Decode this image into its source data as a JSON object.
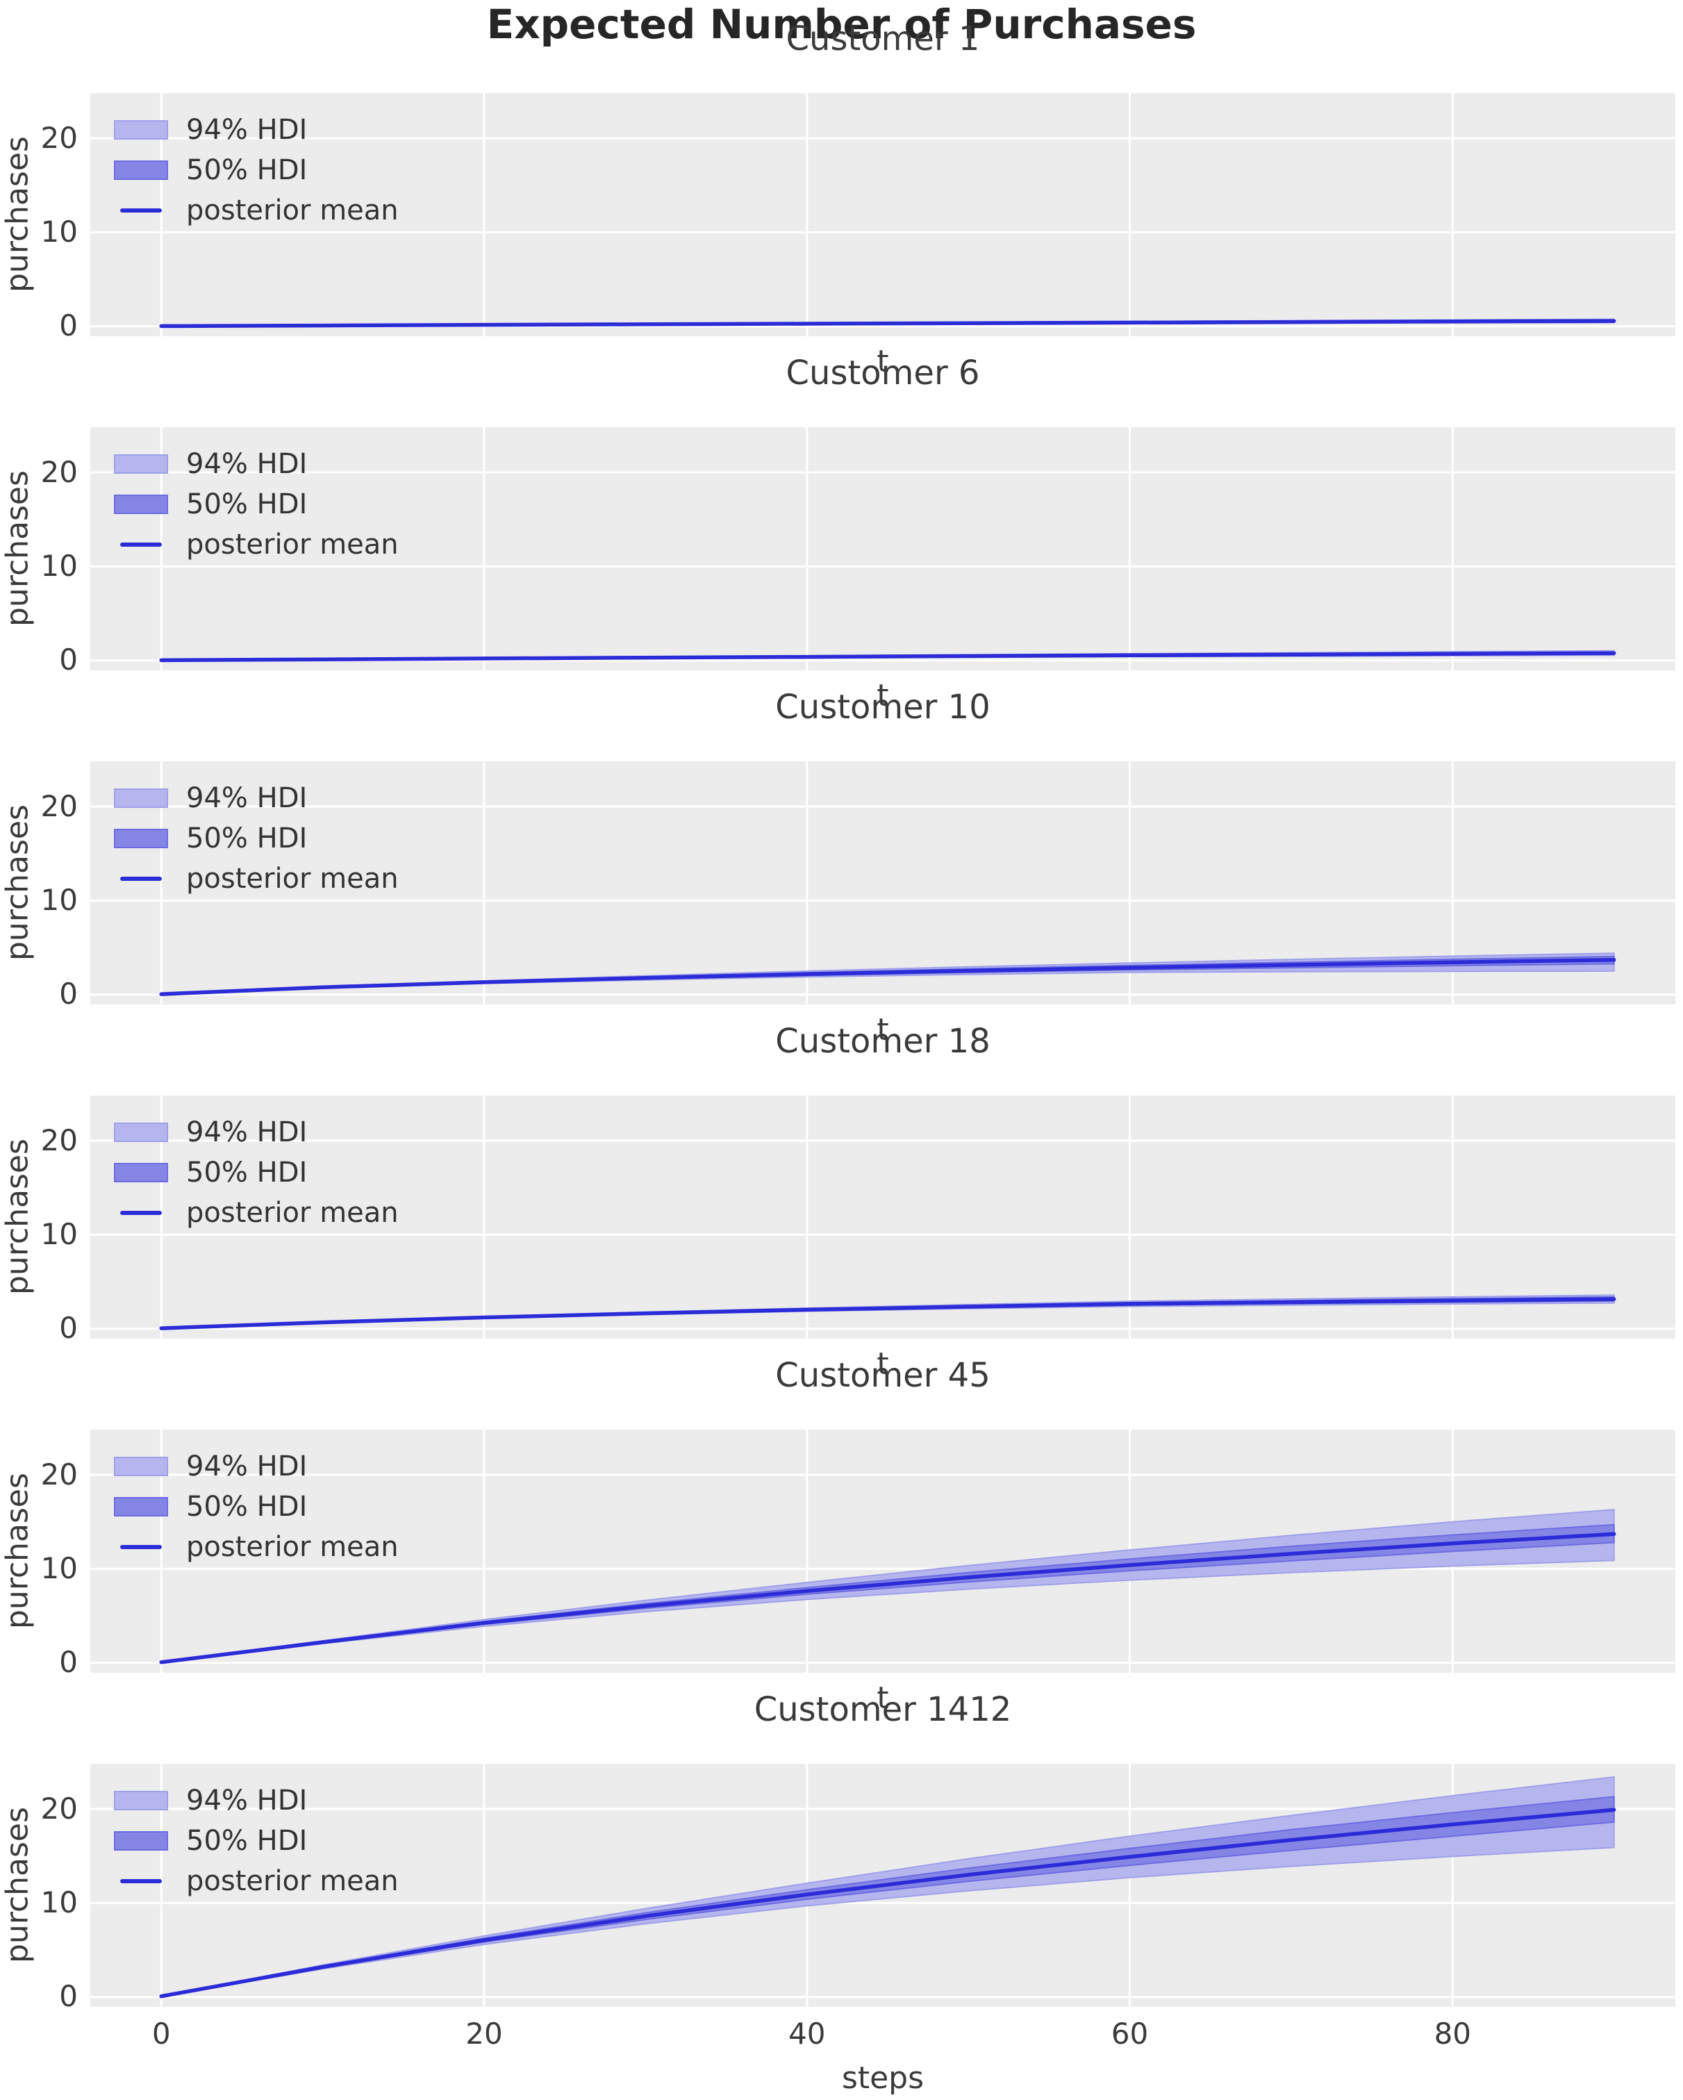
{
  "figure": {
    "suptitle": "Expected Number of Purchases"
  },
  "style": {
    "figure_bg": "#ffffff",
    "panel_bg": "#ececec",
    "grid_color": "#ffffff",
    "text_color": "#3a3a3a",
    "title_color": "#262626",
    "mean_line_color": "#2b2bd8",
    "hdi94_fill": "#b6b6ef",
    "hdi94_edge": "#9f9fe9",
    "hdi50_fill": "#8585e6",
    "hdi50_edge": "#6c6ce0"
  },
  "chart_data": {
    "type": "line",
    "suptitle": "Expected Number of Purchases",
    "legend_labels": [
      "94% HDI",
      "50% HDI",
      "posterior mean"
    ],
    "legend_position": "upper left",
    "grid": true,
    "x": [
      0,
      10,
      20,
      30,
      40,
      50,
      60,
      70,
      80,
      90
    ],
    "x_ticks": [
      0,
      20,
      40,
      60,
      80
    ],
    "y_tick_labels": [
      "0",
      "10",
      "20"
    ],
    "y_ticks": [
      0,
      10,
      20
    ],
    "xlim": [
      -4.4,
      93.8
    ],
    "ylim": [
      -1.05,
      24.8
    ],
    "subplots": [
      {
        "title": "Customer 1",
        "xlabel": "t",
        "ylabel": "purchases",
        "mean": [
          0.03,
          0.09,
          0.16,
          0.22,
          0.28,
          0.34,
          0.4,
          0.46,
          0.52,
          0.57
        ],
        "hdi94_low": [
          0.02,
          0.07,
          0.12,
          0.17,
          0.21,
          0.25,
          0.29,
          0.33,
          0.37,
          0.4
        ],
        "hdi94_high": [
          0.04,
          0.11,
          0.2,
          0.28,
          0.36,
          0.44,
          0.52,
          0.6,
          0.68,
          0.76
        ],
        "hdi50_low": [
          0.025,
          0.08,
          0.14,
          0.2,
          0.25,
          0.3,
          0.35,
          0.4,
          0.45,
          0.5
        ],
        "hdi50_high": [
          0.035,
          0.1,
          0.18,
          0.25,
          0.32,
          0.38,
          0.45,
          0.51,
          0.58,
          0.64
        ]
      },
      {
        "title": "Customer 6",
        "xlabel": "t",
        "ylabel": "purchases",
        "mean": [
          0.03,
          0.12,
          0.21,
          0.3,
          0.38,
          0.47,
          0.55,
          0.63,
          0.71,
          0.78
        ],
        "hdi94_low": [
          0.02,
          0.09,
          0.16,
          0.22,
          0.28,
          0.34,
          0.4,
          0.46,
          0.51,
          0.56
        ],
        "hdi94_high": [
          0.04,
          0.15,
          0.27,
          0.39,
          0.5,
          0.61,
          0.72,
          0.82,
          0.93,
          1.03
        ],
        "hdi50_low": [
          0.025,
          0.11,
          0.19,
          0.27,
          0.34,
          0.42,
          0.49,
          0.56,
          0.63,
          0.7
        ],
        "hdi50_high": [
          0.035,
          0.13,
          0.23,
          0.33,
          0.42,
          0.52,
          0.61,
          0.7,
          0.79,
          0.87
        ]
      },
      {
        "title": "Customer 10",
        "xlabel": "t",
        "ylabel": "purchases",
        "mean": [
          0.05,
          0.78,
          1.32,
          1.78,
          2.18,
          2.54,
          2.86,
          3.16,
          3.44,
          3.7
        ],
        "hdi94_low": [
          0.04,
          0.7,
          1.18,
          1.56,
          1.88,
          2.14,
          2.36,
          2.44,
          2.48,
          2.5
        ],
        "hdi94_high": [
          0.06,
          0.86,
          1.46,
          2.0,
          2.5,
          2.95,
          3.36,
          3.74,
          4.09,
          4.4
        ],
        "hdi50_low": [
          0.045,
          0.74,
          1.25,
          1.68,
          2.04,
          2.35,
          2.62,
          2.86,
          3.08,
          3.28
        ],
        "hdi50_high": [
          0.055,
          0.82,
          1.4,
          1.9,
          2.34,
          2.74,
          3.1,
          3.44,
          3.76,
          4.05
        ]
      },
      {
        "title": "Customer 18",
        "xlabel": "t",
        "ylabel": "purchases",
        "mean": [
          0.05,
          0.68,
          1.2,
          1.64,
          2.02,
          2.35,
          2.64,
          2.82,
          3.0,
          3.15
        ],
        "hdi94_low": [
          0.04,
          0.64,
          1.12,
          1.52,
          1.86,
          2.14,
          2.38,
          2.52,
          2.64,
          2.74
        ],
        "hdi94_high": [
          0.06,
          0.74,
          1.3,
          1.78,
          2.2,
          2.58,
          2.92,
          3.16,
          3.38,
          3.58
        ],
        "hdi50_low": [
          0.045,
          0.67,
          1.17,
          1.59,
          1.95,
          2.26,
          2.52,
          2.68,
          2.83,
          2.96
        ],
        "hdi50_high": [
          0.055,
          0.72,
          1.26,
          1.72,
          2.12,
          2.47,
          2.78,
          3.0,
          3.2,
          3.38
        ]
      },
      {
        "title": "Customer 45",
        "xlabel": "t",
        "ylabel": "purchases",
        "mean": [
          0.07,
          2.2,
          4.25,
          6.05,
          7.65,
          9.1,
          10.4,
          11.6,
          12.7,
          13.7
        ],
        "hdi94_low": [
          0.06,
          2.05,
          3.9,
          5.45,
          6.75,
          7.85,
          8.8,
          9.6,
          10.3,
          10.9
        ],
        "hdi94_high": [
          0.08,
          2.35,
          4.6,
          6.65,
          8.55,
          10.35,
          12.0,
          13.55,
          15.0,
          16.3
        ],
        "hdi50_low": [
          0.065,
          2.13,
          4.1,
          5.8,
          7.3,
          8.6,
          9.8,
          10.85,
          11.85,
          12.8
        ],
        "hdi50_high": [
          0.075,
          2.27,
          4.4,
          6.3,
          8.0,
          9.6,
          11.05,
          12.4,
          13.6,
          14.7
        ]
      },
      {
        "title": "Customer 1412",
        "xlabel": "steps",
        "ylabel": "purchases",
        "mean": [
          0.08,
          3.2,
          6.05,
          8.6,
          10.9,
          13.0,
          14.9,
          16.7,
          18.35,
          19.9
        ],
        "hdi94_low": [
          0.07,
          3.0,
          5.6,
          7.8,
          9.7,
          11.3,
          12.7,
          13.9,
          14.95,
          15.9
        ],
        "hdi94_high": [
          0.09,
          3.4,
          6.5,
          9.4,
          12.1,
          14.7,
          17.1,
          19.3,
          21.4,
          23.4
        ],
        "hdi50_low": [
          0.075,
          3.1,
          5.85,
          8.25,
          10.4,
          12.3,
          14.0,
          15.6,
          17.1,
          18.6
        ],
        "hdi50_high": [
          0.085,
          3.3,
          6.25,
          8.95,
          11.4,
          13.7,
          15.8,
          17.8,
          19.6,
          21.3
        ]
      }
    ]
  }
}
